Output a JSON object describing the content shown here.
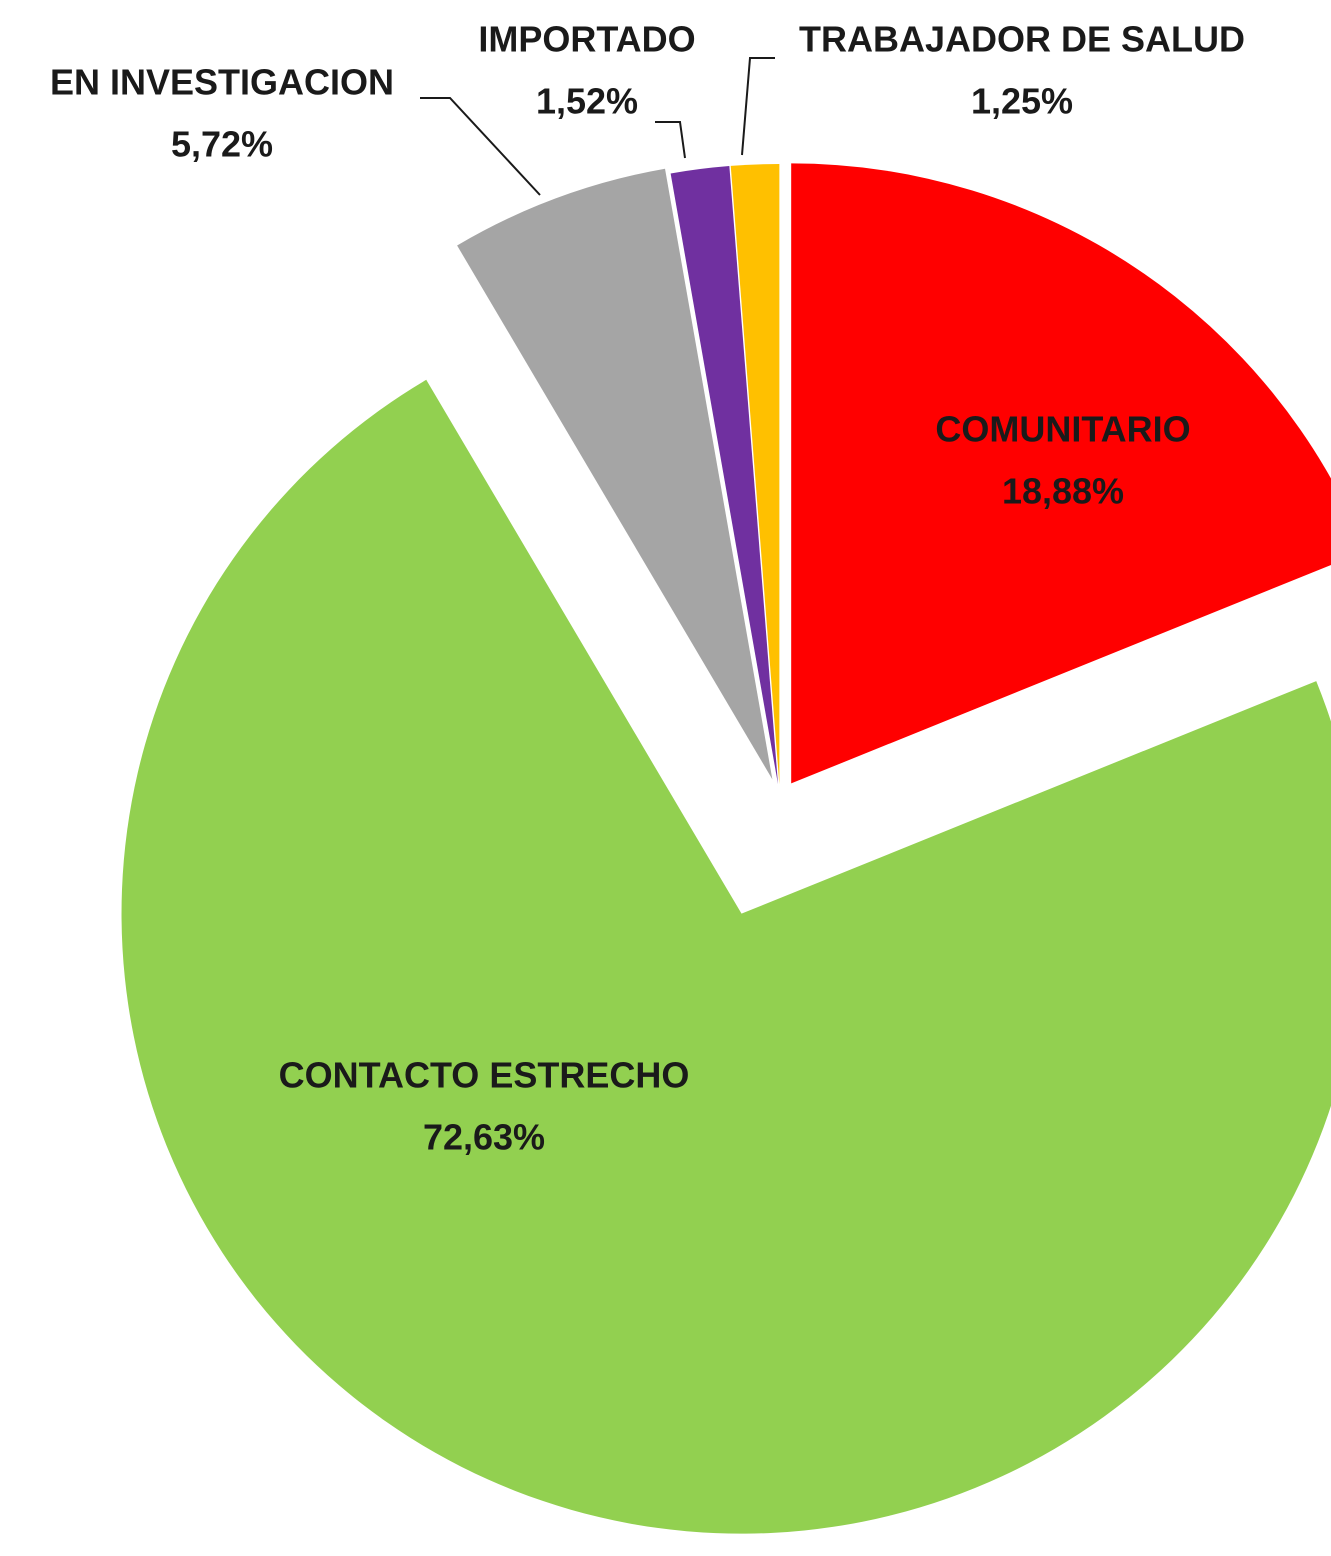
{
  "chart_data": {
    "type": "pie",
    "categories": [
      "COMUNITARIO",
      "CONTACTO ESTRECHO",
      "EN INVESTIGACION",
      "IMPORTADO",
      "TRABAJADOR DE SALUD"
    ],
    "values": [
      18.88,
      72.63,
      5.72,
      1.52,
      1.25
    ],
    "value_labels": [
      "18,88%",
      "72,63%",
      "5,72%",
      "1,52%",
      "1,25%"
    ],
    "colors": [
      "#ff0000",
      "#92d050",
      "#a5a5a5",
      "#7030a0",
      "#ffc000"
    ]
  }
}
